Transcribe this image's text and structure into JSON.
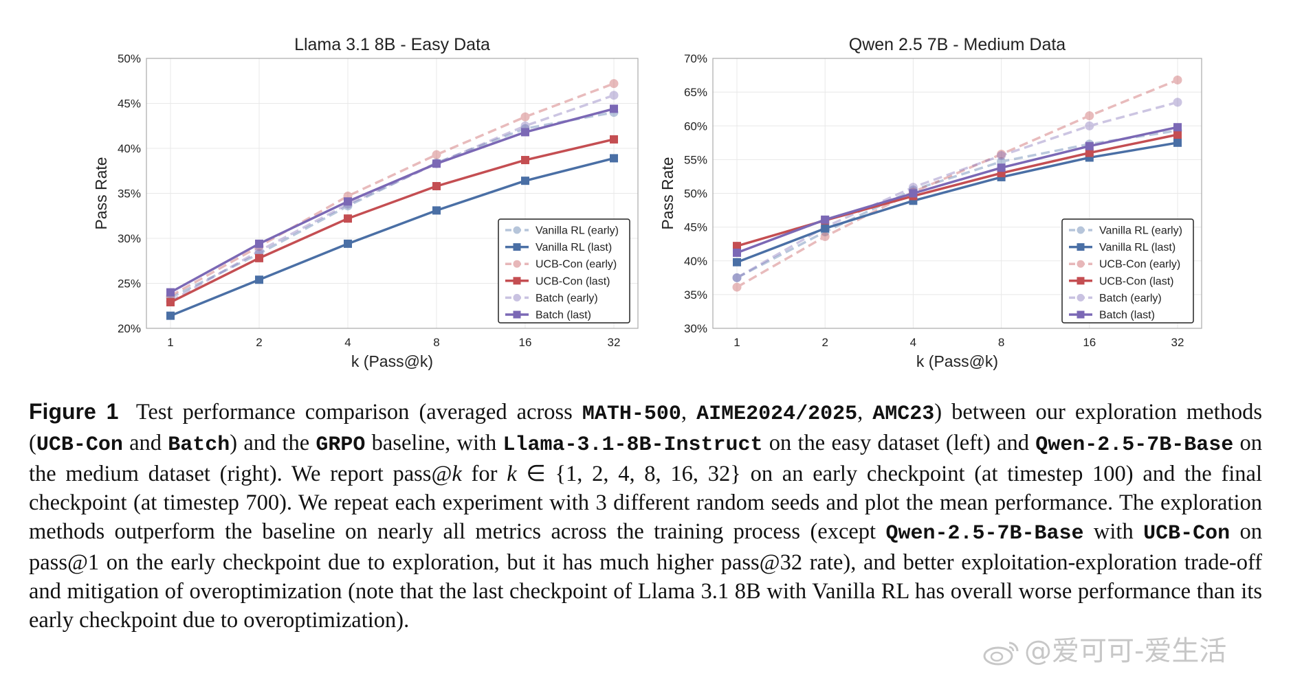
{
  "colors": {
    "vanilla": "#4a6fa5",
    "ucb": "#c44e52",
    "batch": "#7b68b5",
    "grid": "#e8e8e8",
    "axis": "#aaaaaa"
  },
  "chart_data": [
    {
      "type": "line",
      "title": "Llama 3.1 8B - Easy Data",
      "xlabel": "k (Pass@k)",
      "ylabel": "Pass Rate",
      "categories": [
        "1",
        "2",
        "4",
        "8",
        "16",
        "32"
      ],
      "ylim": [
        20,
        50
      ],
      "yticks": [
        "20%",
        "25%",
        "30%",
        "35%",
        "40%",
        "45%",
        "50%"
      ],
      "grid": true,
      "legend_position": "lower-right",
      "series": [
        {
          "name": "Vanilla RL (early)",
          "color": "vanilla",
          "style": "dashed",
          "marker": "circle",
          "values": [
            23.4,
            28.3,
            33.6,
            38.4,
            42.2,
            44.0
          ]
        },
        {
          "name": "Vanilla RL (last)",
          "color": "vanilla",
          "style": "solid",
          "marker": "square",
          "values": [
            21.4,
            25.4,
            29.4,
            33.1,
            36.4,
            38.9
          ]
        },
        {
          "name": "UCB-Con (early)",
          "color": "ucb",
          "style": "dashed",
          "marker": "circle",
          "values": [
            23.6,
            29.1,
            34.7,
            39.3,
            43.5,
            47.2
          ]
        },
        {
          "name": "UCB-Con (last)",
          "color": "ucb",
          "style": "solid",
          "marker": "square",
          "values": [
            22.9,
            27.8,
            32.2,
            35.8,
            38.7,
            41.0
          ]
        },
        {
          "name": "Batch (early)",
          "color": "batch",
          "style": "dashed",
          "marker": "circle",
          "values": [
            23.0,
            28.6,
            33.8,
            38.3,
            42.5,
            45.9
          ]
        },
        {
          "name": "Batch (last)",
          "color": "batch",
          "style": "solid",
          "marker": "square",
          "values": [
            24.0,
            29.4,
            34.1,
            38.3,
            41.8,
            44.4
          ]
        }
      ]
    },
    {
      "type": "line",
      "title": "Qwen 2.5 7B - Medium Data",
      "xlabel": "k (Pass@k)",
      "ylabel": "Pass Rate",
      "categories": [
        "1",
        "2",
        "4",
        "8",
        "16",
        "32"
      ],
      "ylim": [
        30,
        70
      ],
      "yticks": [
        "30%",
        "35%",
        "40%",
        "45%",
        "50%",
        "55%",
        "60%",
        "65%",
        "70%"
      ],
      "grid": true,
      "legend_position": "lower-right",
      "series": [
        {
          "name": "Vanilla RL (early)",
          "color": "vanilla",
          "style": "dashed",
          "marker": "circle",
          "values": [
            37.5,
            44.3,
            50.5,
            54.7,
            57.3,
            59.3
          ]
        },
        {
          "name": "Vanilla RL (last)",
          "color": "vanilla",
          "style": "solid",
          "marker": "square",
          "values": [
            39.8,
            44.8,
            48.9,
            52.4,
            55.3,
            57.5
          ]
        },
        {
          "name": "UCB-Con (early)",
          "color": "ucb",
          "style": "dashed",
          "marker": "circle",
          "values": [
            36.1,
            43.6,
            50.2,
            55.8,
            61.5,
            66.8
          ]
        },
        {
          "name": "UCB-Con (last)",
          "color": "ucb",
          "style": "solid",
          "marker": "square",
          "values": [
            42.2,
            46.0,
            49.6,
            53.0,
            56.0,
            58.7
          ]
        },
        {
          "name": "Batch (early)",
          "color": "batch",
          "style": "dashed",
          "marker": "circle",
          "values": [
            37.5,
            45.0,
            50.9,
            55.6,
            60.0,
            63.5
          ]
        },
        {
          "name": "Batch (last)",
          "color": "batch",
          "style": "solid",
          "marker": "square",
          "values": [
            41.2,
            46.1,
            50.0,
            53.8,
            57.0,
            59.8
          ]
        }
      ]
    }
  ],
  "caption": {
    "label": "Figure 1",
    "t1": "Test performance comparison (averaged across ",
    "m1": "MATH-500",
    "t2": ", ",
    "m2": "AIME2024/2025",
    "t3": ", ",
    "m3": "AMC23",
    "t4": ") between our exploration methods (",
    "m4": "UCB-Con",
    "t5": " and ",
    "m5": "Batch",
    "t6": ") and the ",
    "m6": "GRPO",
    "t7": " baseline, with ",
    "m7": "Llama-3.1-8B-Instruct",
    "t8": " on the easy dataset (left) and ",
    "m8": "Qwen-2.5-7B-Base",
    "t9": " on the medium dataset (right). We report pass@",
    "i1": "k",
    "t10": " for ",
    "i2": "k",
    "t11": " ∈ {1, 2, 4, 8, 16, 32} on an early checkpoint (at timestep 100) and the final checkpoint (at timestep 700). We repeat each experiment with 3 different random seeds and plot the mean performance. The exploration methods outperform the baseline on nearly all metrics across the training process (except ",
    "m9": "Qwen-2.5-7B-Base",
    "t12": " with ",
    "m10": "UCB-Con",
    "t13": " on pass@1 on the early checkpoint due to exploration, but it has much higher pass@32 rate), and better exploitation-exploration trade-off and mitigation of overoptimization (note that the last checkpoint of Llama 3.1 8B with Vanilla RL has overall worse performance than its early checkpoint due to overoptimization)."
  },
  "watermark": {
    "text": "@爱可可-爱生活",
    "icon": "weibo-icon"
  }
}
